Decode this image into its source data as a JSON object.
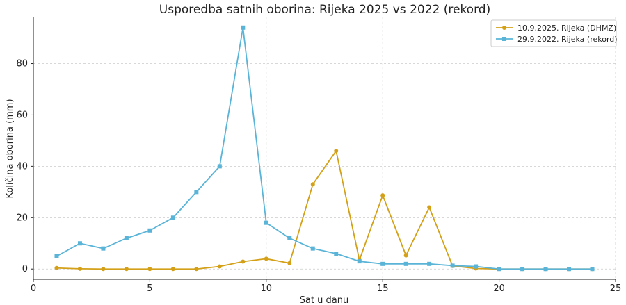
{
  "chart_data": {
    "type": "line",
    "title": "Usporedba satnih oborina: Rijeka 2025 vs 2022 (rekord)",
    "xlabel": "Sat u danu",
    "ylabel": "Količina oborina (mm)",
    "xlim": [
      0,
      25
    ],
    "ylim": [
      -4,
      98
    ],
    "xticks": [
      0,
      5,
      10,
      15,
      20,
      25
    ],
    "yticks": [
      0,
      20,
      40,
      60,
      80
    ],
    "grid": true,
    "legend_position": "top-right",
    "series": [
      {
        "name": "10.9.2025. Rijeka (DHMZ)",
        "color": "#d4a017",
        "marker": "circle",
        "x": [
          1,
          2,
          3,
          4,
          5,
          6,
          7,
          8,
          9,
          10,
          11,
          12,
          13,
          14,
          15,
          16,
          17,
          18,
          19,
          20,
          21,
          22,
          23,
          24
        ],
        "values": [
          0.4,
          0.1,
          0,
          0,
          0,
          0,
          0,
          1,
          2.9,
          4,
          2.3,
          33,
          46,
          3.5,
          28.7,
          5.3,
          24,
          1.2,
          0.2,
          0,
          0,
          0,
          0,
          0
        ]
      },
      {
        "name": "29.9.2022. Rijeka (rekord)",
        "color": "#5ab4d8",
        "marker": "square",
        "x": [
          1,
          2,
          3,
          4,
          5,
          6,
          7,
          8,
          9,
          10,
          11,
          12,
          13,
          14,
          15,
          16,
          17,
          18,
          19,
          20,
          21,
          22,
          23,
          24
        ],
        "values": [
          5,
          10,
          8,
          12,
          15,
          20,
          30,
          40,
          94,
          18,
          12,
          8,
          6,
          3,
          2,
          2,
          2,
          1.3,
          1,
          0,
          0,
          0,
          0,
          0
        ]
      }
    ]
  }
}
